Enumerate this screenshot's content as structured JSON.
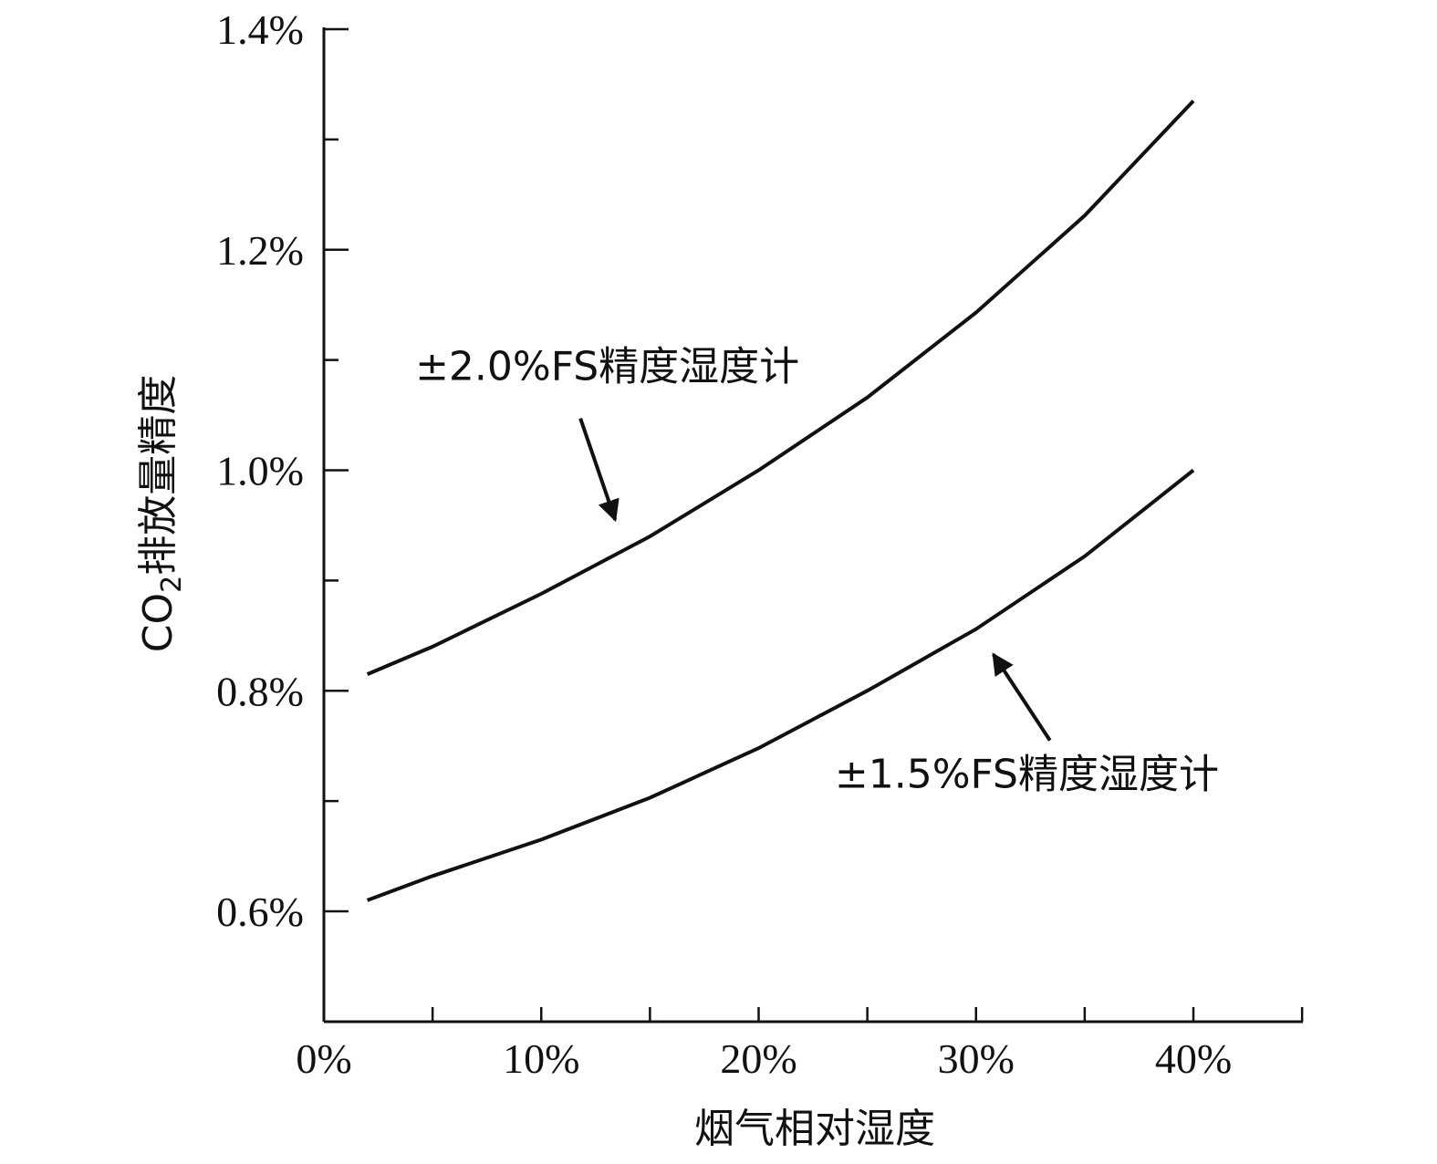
{
  "chart_data": {
    "type": "line",
    "xlabel": "烟气相对湿度",
    "ylabel_main": "CO",
    "ylabel_sub": "2",
    "ylabel_rest": "排放量精度",
    "xlim": [
      0,
      45
    ],
    "ylim": [
      0.5,
      1.4
    ],
    "x_ticks": [
      0,
      10,
      20,
      30,
      40
    ],
    "x_tick_labels": [
      "0%",
      "10%",
      "20%",
      "30%",
      "40%"
    ],
    "x_minor_ticks": [
      5,
      15,
      25,
      35,
      45
    ],
    "y_ticks": [
      0.6,
      0.8,
      1.0,
      1.2,
      1.4
    ],
    "y_tick_labels": [
      "0.6%",
      "0.8%",
      "1.0%",
      "1.2%",
      "1.4%"
    ],
    "y_minor_ticks": [
      0.7,
      0.9,
      1.1,
      1.3
    ],
    "grid": false,
    "series": [
      {
        "name": "±2.0%FS精度湿度计",
        "x": [
          2,
          5,
          10,
          15,
          20,
          25,
          30,
          35,
          40
        ],
        "y": [
          0.815,
          0.84,
          0.888,
          0.94,
          1.0,
          1.066,
          1.143,
          1.231,
          1.335
        ]
      },
      {
        "name": "±1.5%FS精度湿度计",
        "x": [
          2,
          5,
          10,
          15,
          20,
          25,
          30,
          35,
          40
        ],
        "y": [
          0.61,
          0.632,
          0.665,
          0.703,
          0.748,
          0.8,
          0.856,
          0.922,
          1.0
        ]
      }
    ],
    "annotations": [
      {
        "text": "±2.0%FS精度湿度计",
        "series": 0,
        "text_x": 4.2,
        "text_y": 1.082,
        "arrow_from": [
          11.8,
          1.047
        ],
        "arrow_to": [
          13.4,
          0.955
        ]
      },
      {
        "text": "±1.5%FS精度湿度计",
        "series": 1,
        "text_x": 23.5,
        "text_y": 0.712,
        "arrow_from": [
          33.4,
          0.755
        ],
        "arrow_to": [
          30.8,
          0.833
        ]
      }
    ]
  }
}
